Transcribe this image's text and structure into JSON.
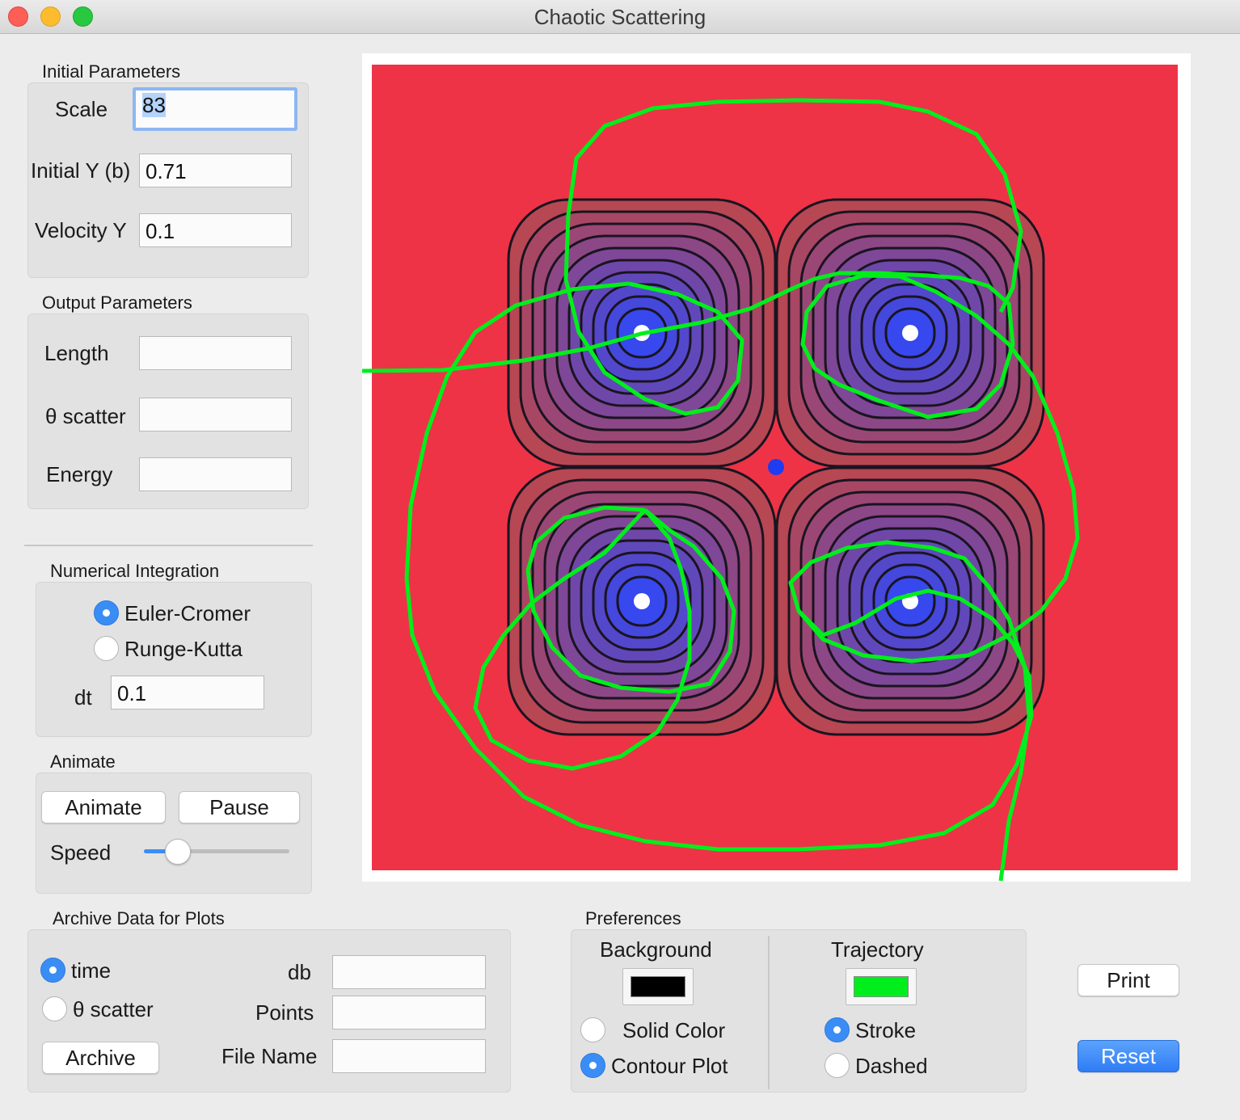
{
  "window": {
    "title": "Chaotic Scattering"
  },
  "initial_parameters": {
    "title": "Initial Parameters",
    "scale_label": "Scale",
    "scale_value": "83",
    "initial_y_label": "Initial Y (b)",
    "initial_y_value": "0.71",
    "velocity_y_label": "Velocity Y",
    "velocity_y_value": "0.1"
  },
  "output_parameters": {
    "title": "Output Parameters",
    "length_label": "Length",
    "length_value": "",
    "theta_label": "θ scatter",
    "theta_value": "",
    "energy_label": "Energy",
    "energy_value": ""
  },
  "numerical_integration": {
    "title": "Numerical Integration",
    "options": [
      "Euler-Cromer",
      "Runge-Kutta"
    ],
    "selected": "Euler-Cromer",
    "dt_label": "dt",
    "dt_value": "0.1"
  },
  "animate": {
    "title": "Animate",
    "animate_label": "Animate",
    "pause_label": "Pause",
    "speed_label": "Speed",
    "speed_value": 0.23
  },
  "archive": {
    "title": "Archive Data for Plots",
    "options": [
      "time",
      "θ scatter"
    ],
    "selected": "time",
    "db_label": "db",
    "db_value": "",
    "points_label": "Points",
    "points_value": "",
    "filename_label": "File Name",
    "filename_value": "",
    "archive_button": "Archive"
  },
  "preferences": {
    "title": "Preferences",
    "background_label": "Background",
    "background_color": "#000000",
    "background_options": [
      "Solid Color",
      "Contour Plot"
    ],
    "background_selected": "Contour Plot",
    "trajectory_label": "Trajectory",
    "trajectory_color": "#00ee1c",
    "trajectory_options": [
      "Stroke",
      "Dashed"
    ],
    "trajectory_selected": "Stroke"
  },
  "actions": {
    "print_label": "Print",
    "reset_label": "Reset"
  },
  "plot": {
    "background_color": "#ee3347",
    "well_color": "#3648ee",
    "trajectory_color": "#00ee1c",
    "center_marker_color": "#1e3cf0"
  }
}
